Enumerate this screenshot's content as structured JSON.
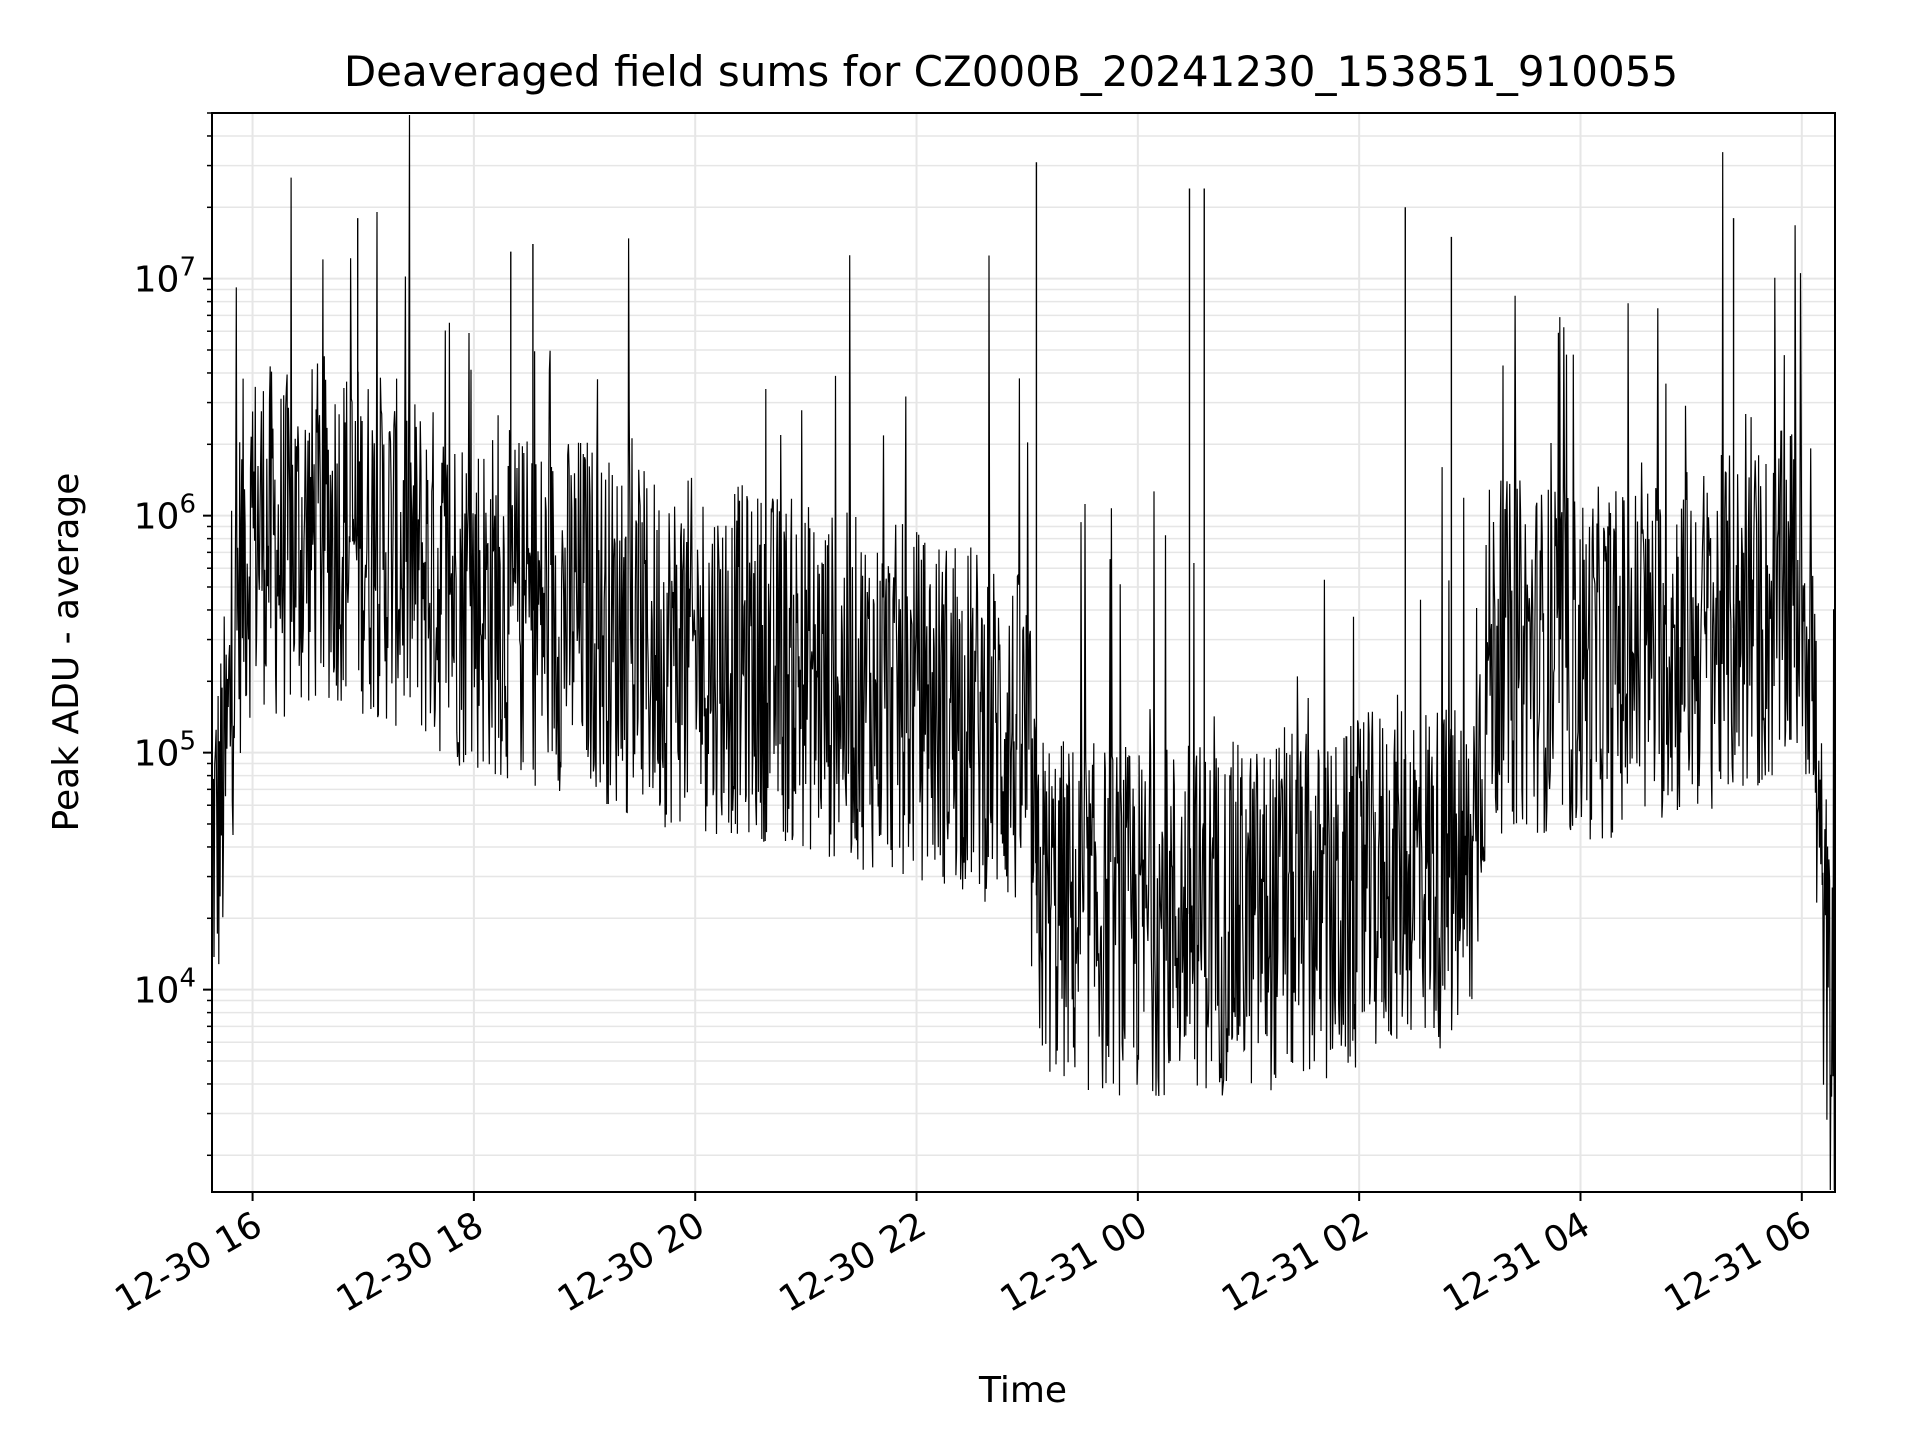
{
  "chart_data": {
    "type": "line",
    "title": "Deaveraged field sums for CZ000B_20241230_153851_910055",
    "xlabel": "Time",
    "ylabel": "Peak ADU - average",
    "yscale": "log",
    "grid": true,
    "line_color": "#000000",
    "xlim": [
      "2024-12-30 15:38",
      "2024-12-31 06:18"
    ],
    "ylim": [
      1400,
      50000000
    ],
    "x_ticks": [
      "12-30 16",
      "12-30 18",
      "12-30 20",
      "12-30 22",
      "12-31 00",
      "12-31 02",
      "12-31 04",
      "12-31 06"
    ],
    "x_tick_times": [
      "2024-12-30 16:00",
      "2024-12-30 18:00",
      "2024-12-30 20:00",
      "2024-12-30 22:00",
      "2024-12-31 00:00",
      "2024-12-31 02:00",
      "2024-12-31 04:00",
      "2024-12-31 06:00"
    ],
    "y_ticks": [
      {
        "base": "10",
        "exp": "4",
        "value": 10000
      },
      {
        "base": "10",
        "exp": "5",
        "value": 100000
      },
      {
        "base": "10",
        "exp": "6",
        "value": 1000000
      },
      {
        "base": "10",
        "exp": "7",
        "value": 10000000
      }
    ],
    "series": [
      {
        "x": [
          "2024-12-30 15:38",
          "2024-12-30 15:42",
          "2024-12-30 15:46",
          "2024-12-30 15:50",
          "2024-12-30 15:55",
          "2024-12-30 16:05",
          "2024-12-30 16:15",
          "2024-12-30 16:30",
          "2024-12-30 16:45",
          "2024-12-30 17:00",
          "2024-12-30 17:15",
          "2024-12-30 17:30",
          "2024-12-30 17:45",
          "2024-12-30 18:00",
          "2024-12-30 18:15",
          "2024-12-30 18:30",
          "2024-12-30 18:45",
          "2024-12-30 19:00",
          "2024-12-30 19:15",
          "2024-12-30 19:30",
          "2024-12-30 19:45",
          "2024-12-30 20:00",
          "2024-12-30 20:15",
          "2024-12-30 20:30",
          "2024-12-30 20:45",
          "2024-12-30 21:00",
          "2024-12-30 21:15",
          "2024-12-30 21:30",
          "2024-12-30 21:45",
          "2024-12-30 22:00",
          "2024-12-30 22:15",
          "2024-12-30 22:30",
          "2024-12-30 22:45",
          "2024-12-30 23:00",
          "2024-12-30 23:05",
          "2024-12-30 23:15",
          "2024-12-30 23:30",
          "2024-12-30 23:45",
          "2024-12-31 00:00",
          "2024-12-31 00:15",
          "2024-12-31 00:30",
          "2024-12-31 00:45",
          "2024-12-31 01:00",
          "2024-12-31 01:15",
          "2024-12-31 01:30",
          "2024-12-31 01:45",
          "2024-12-31 02:00",
          "2024-12-31 02:15",
          "2024-12-31 02:30",
          "2024-12-31 02:45",
          "2024-12-31 03:00",
          "2024-12-31 03:10",
          "2024-12-31 03:30",
          "2024-12-31 03:45",
          "2024-12-31 04:00",
          "2024-12-31 04:15",
          "2024-12-31 04:30",
          "2024-12-31 04:45",
          "2024-12-31 05:00",
          "2024-12-31 05:15",
          "2024-12-31 05:30",
          "2024-12-31 05:45",
          "2024-12-31 06:00",
          "2024-12-31 06:05",
          "2024-12-31 06:10",
          "2024-12-31 06:15",
          "2024-12-31 06:18"
        ],
        "y": [
          40000,
          50000,
          90000,
          300000,
          700000,
          900000,
          700000,
          800000,
          900000,
          800000,
          700000,
          600000,
          500000,
          450000,
          420000,
          400000,
          380000,
          420000,
          320000,
          280000,
          270000,
          260000,
          250000,
          240000,
          230000,
          210000,
          190000,
          180000,
          170000,
          160000,
          150000,
          140000,
          120000,
          100000,
          25000,
          22000,
          20000,
          20000,
          19000,
          20000,
          21000,
          20000,
          20000,
          21000,
          22000,
          20000,
          25000,
          30000,
          35000,
          30000,
          28000,
          250000,
          260000,
          250000,
          230000,
          240000,
          260000,
          280000,
          300000,
          320000,
          350000,
          380000,
          500000,
          300000,
          30000,
          8000,
          2500
        ],
        "spikes": [
          {
            "x": "2024-12-30 16:57",
            "y": 18000000
          },
          {
            "x": "2024-12-30 18:20",
            "y": 13000000
          },
          {
            "x": "2024-12-30 18:32",
            "y": 14000000
          },
          {
            "x": "2024-12-30 23:05",
            "y": 31000000
          },
          {
            "x": "2024-12-31 00:28",
            "y": 24000000
          },
          {
            "x": "2024-12-31 00:36",
            "y": 24000000
          },
          {
            "x": "2024-12-31 02:25",
            "y": 20000000
          },
          {
            "x": "2024-12-31 02:50",
            "y": 15000000
          },
          {
            "x": "2024-12-31 05:23",
            "y": 18000000
          }
        ]
      }
    ]
  }
}
